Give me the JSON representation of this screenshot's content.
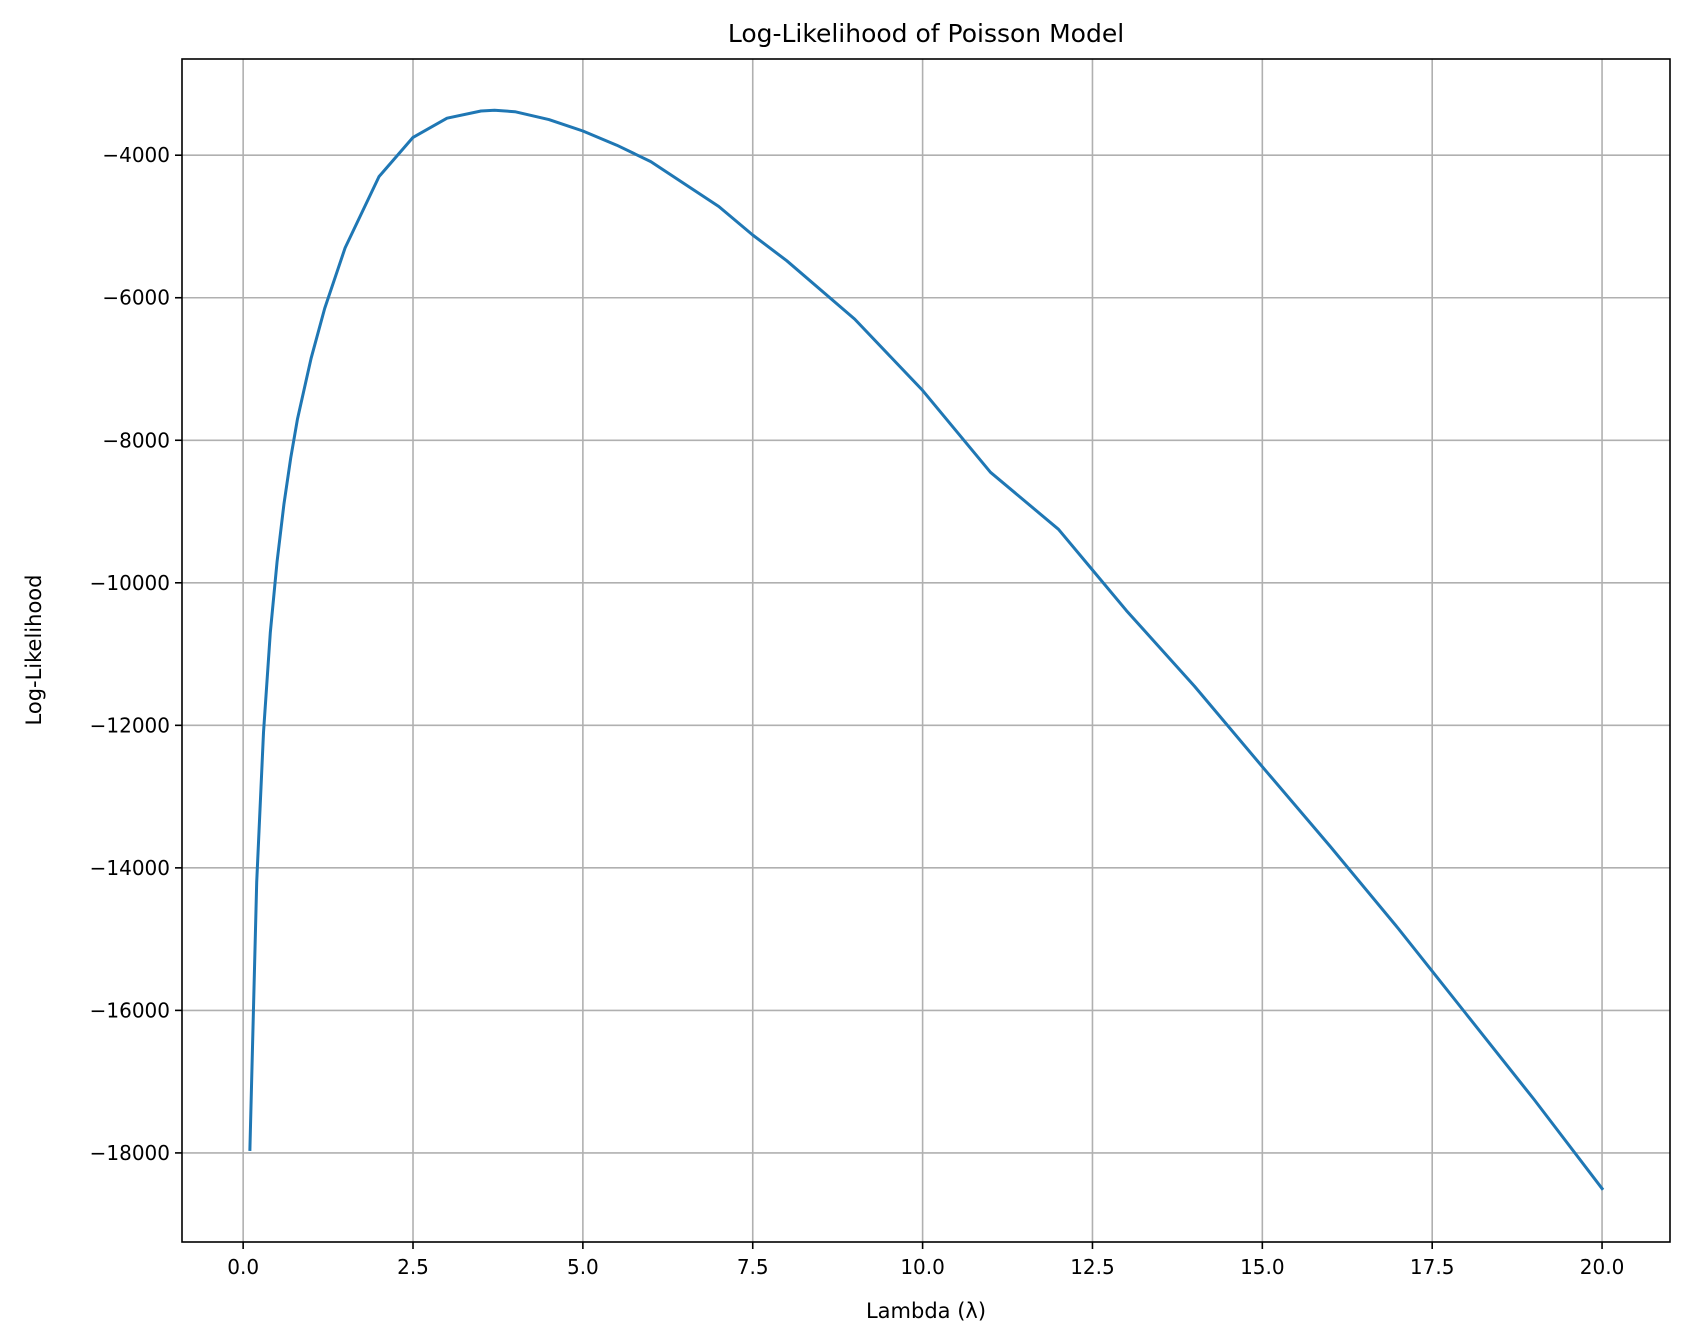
{
  "chart_data": {
    "type": "line",
    "title": "Log-Likelihood of Poisson Model",
    "xlabel": "Lambda (λ)",
    "ylabel": "Log-Likelihood",
    "xlim": [
      -0.9,
      21.0
    ],
    "ylim": [
      -19250,
      -2650
    ],
    "grid": true,
    "xticks": [
      0.0,
      2.5,
      5.0,
      7.5,
      10.0,
      12.5,
      15.0,
      17.5,
      20.0
    ],
    "xtick_labels": [
      "0.0",
      "2.5",
      "5.0",
      "7.5",
      "10.0",
      "12.5",
      "15.0",
      "17.5",
      "20.0"
    ],
    "yticks": [
      -18000,
      -16000,
      -14000,
      -12000,
      -10000,
      -8000,
      -6000,
      -4000
    ],
    "ytick_labels": [
      "−18000",
      "−16000",
      "−14000",
      "−12000",
      "−10000",
      "−8000",
      "−6000",
      "−4000"
    ],
    "series": [
      {
        "color": "#1f77b4",
        "x": [
          0.1,
          0.2,
          0.3,
          0.4,
          0.5,
          0.6,
          0.7,
          0.8,
          1.0,
          1.2,
          1.5,
          2.0,
          2.5,
          3.0,
          3.5,
          3.7,
          4.0,
          4.5,
          5.0,
          5.5,
          6.0,
          7.0,
          7.5,
          8.0,
          9.0,
          10.0,
          11.0,
          12.0,
          12.5,
          13.0,
          14.0,
          15.0,
          16.0,
          17.0,
          17.5,
          18.0,
          19.0,
          20.0
        ],
        "y": [
          -17950,
          -14200,
          -12100,
          -10700,
          -9700,
          -8900,
          -8250,
          -7700,
          -6850,
          -6150,
          -5300,
          -4300,
          -3750,
          -3480,
          -3380,
          -3370,
          -3390,
          -3500,
          -3660,
          -3860,
          -4090,
          -4720,
          -5120,
          -5480,
          -6300,
          -7300,
          -8450,
          -9250,
          -9820,
          -10390,
          -11450,
          -12580,
          -13700,
          -14850,
          -15450,
          -16050,
          -17250,
          -18500
        ]
      }
    ]
  }
}
